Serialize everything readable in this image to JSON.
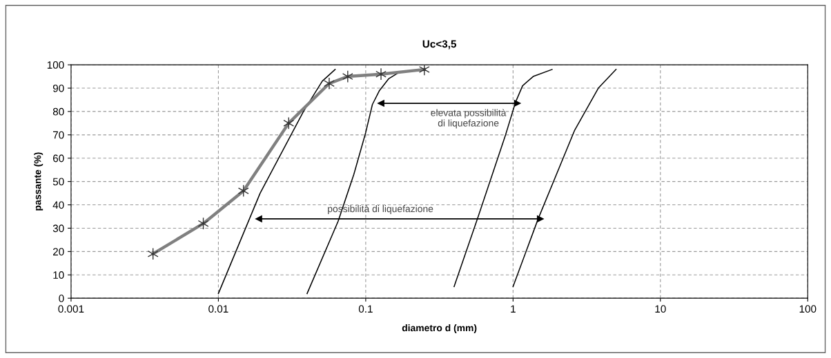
{
  "chart_data": {
    "type": "line",
    "title": "Uc<3,5",
    "xlabel": "diametro d (mm)",
    "ylabel": "passante (%)",
    "log": "x",
    "xlim": [
      0.001,
      100
    ],
    "xticks": [
      0.001,
      0.01,
      0.1,
      1,
      10,
      100
    ],
    "ylim": [
      0,
      100
    ],
    "yticks": [
      0,
      10,
      20,
      30,
      40,
      50,
      60,
      70,
      80,
      90,
      100
    ],
    "grid": true,
    "legend": false,
    "series": [
      {
        "color": "#000000",
        "x": [
          0.01,
          0.0192,
          0.0378,
          0.0507,
          0.062
        ],
        "values": [
          2,
          45,
          80,
          93,
          98
        ]
      },
      {
        "color": "#000000",
        "x": [
          0.04,
          0.065,
          0.083,
          0.1,
          0.111,
          0.124,
          0.143,
          0.171
        ],
        "values": [
          2,
          33,
          53,
          71,
          83,
          89,
          94,
          97
        ]
      },
      {
        "color": "#000000",
        "x": [
          0.398,
          0.58,
          0.89,
          1.04,
          1.16,
          1.37,
          1.84
        ],
        "values": [
          5,
          35,
          70,
          84,
          91,
          95,
          98
        ]
      },
      {
        "color": "#000000",
        "x": [
          1.0,
          1.48,
          2.62,
          3.79,
          5.0
        ],
        "values": [
          5,
          34,
          72,
          90,
          98
        ]
      },
      {
        "color": "#808080",
        "marker": "cross",
        "x": [
          0.0036,
          0.0079,
          0.0148,
          0.03,
          0.0565,
          0.0755,
          0.127,
          0.25
        ],
        "values": [
          19,
          32,
          46,
          75,
          92,
          95,
          96,
          98
        ]
      },
      {
        "color": "#000000",
        "marker": "triangle",
        "x": [
          0.127,
          1.07
        ],
        "values": [
          83.5,
          83.5
        ]
      },
      {
        "color": "#000000",
        "marker": "triangle",
        "x": [
          0.0188,
          1.53
        ],
        "values": [
          34,
          34
        ]
      }
    ],
    "annotations": [
      "elevata possibilità\ndi liquefazione",
      "possibilità di liquefazione"
    ]
  }
}
